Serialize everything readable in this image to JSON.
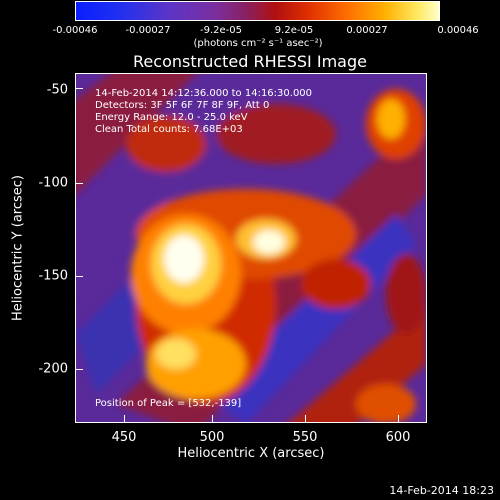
{
  "colorbar": {
    "ticks": [
      "-0.00046",
      "-0.00027",
      "-9.2e-05",
      "9.2e-05",
      "0.00027",
      "0.00046"
    ],
    "unit": "(photons cm⁻² s⁻¹ asec⁻²)"
  },
  "title": "Reconstructed RHESSI Image",
  "info": {
    "time": "14-Feb-2014 14:12:36.000 to 14:16:30.000",
    "detectors": "Detectors: 3F 5F 6F 7F 8F 9F, Att 0",
    "energy": "Energy Range: 12.0 - 25.0 keV",
    "clean": "Clean     Total counts: 7.68E+03"
  },
  "peak": "Position of Peak = [532,-139]",
  "footer": "14-Feb-2014 18:23",
  "chart_data": {
    "type": "heatmap",
    "title": "Reconstructed RHESSI Image",
    "xlabel": "Heliocentric X (arcsec)",
    "ylabel": "Heliocentric Y (arcsec)",
    "x_ticks": [
      "450",
      "500",
      "550",
      "600"
    ],
    "y_ticks": [
      "-50",
      "-100",
      "-150",
      "-200"
    ],
    "xlim": [
      422,
      614
    ],
    "ylim": [
      -233,
      -42
    ],
    "colorbar_range": [
      -0.00046,
      0.00046
    ],
    "peak_position": [
      532,
      -139
    ]
  }
}
